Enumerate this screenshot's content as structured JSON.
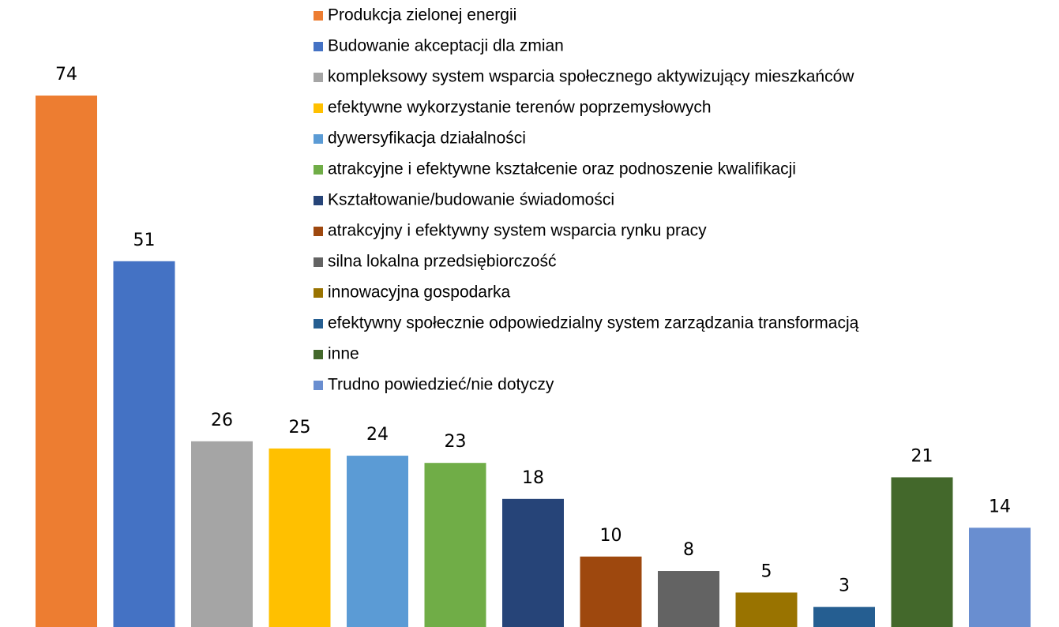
{
  "chart_data": {
    "type": "bar",
    "series": [
      {
        "name": "Produkcja zielonej energii",
        "color": "#ED7D31",
        "values": [
          74
        ]
      },
      {
        "name": "Budowanie akceptacji dla zmian",
        "color": "#4472C4",
        "values": [
          51
        ]
      },
      {
        "name": "kompleksowy system wsparcia społecznego aktywizujący mieszkańców",
        "color": "#A5A5A5",
        "values": [
          26
        ]
      },
      {
        "name": "efektywne wykorzystanie terenów poprzemysłowych",
        "color": "#FFC000",
        "values": [
          25
        ]
      },
      {
        "name": "dywersyfikacja działalności",
        "color": "#5B9BD5",
        "values": [
          24
        ]
      },
      {
        "name": "atrakcyjne i efektywne kształcenie oraz podnoszenie kwalifikacji",
        "color": "#70AD47",
        "values": [
          23
        ]
      },
      {
        "name": "Kształtowanie/budowanie świadomości",
        "color": "#264478",
        "values": [
          18
        ]
      },
      {
        "name": "atrakcyjny i efektywny system wsparcia rynku pracy",
        "color": "#9E480E",
        "values": [
          10
        ]
      },
      {
        "name": "silna lokalna przedsiębiorczość",
        "color": "#636363",
        "values": [
          8
        ]
      },
      {
        "name": "innowacyjna gospodarka",
        "color": "#997300",
        "values": [
          5
        ]
      },
      {
        "name": "efektywny społecznie odpowiedzialny system zarządzania transformacją",
        "color": "#255E91",
        "values": [
          3
        ]
      },
      {
        "name": "inne",
        "color": "#43682B",
        "values": [
          21
        ]
      },
      {
        "name": "Trudno powiedzieć/nie dotyczy",
        "color": "#698ED0",
        "values": [
          14
        ]
      }
    ]
  }
}
